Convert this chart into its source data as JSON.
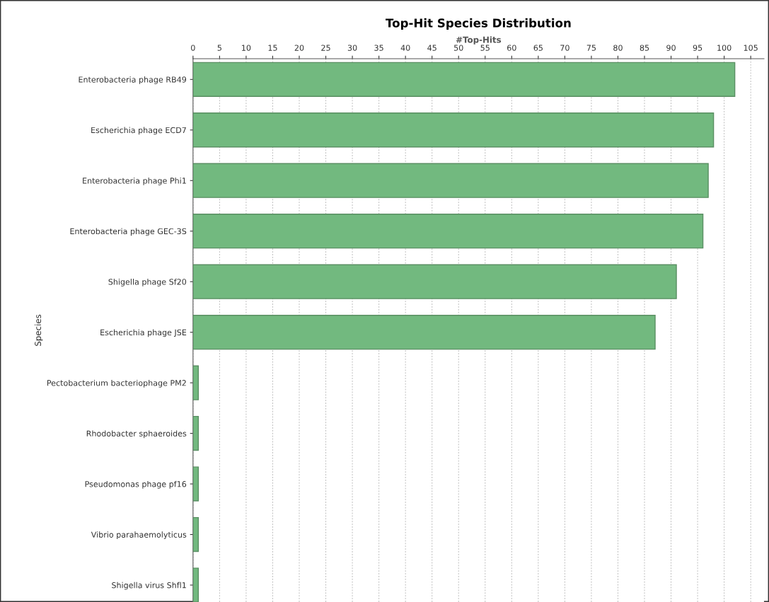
{
  "chart_data": {
    "type": "bar",
    "orientation": "horizontal",
    "title": "Top-Hit Species Distribution",
    "xlabel": "#Top-Hits",
    "ylabel": "Species",
    "categories": [
      "Enterobacteria phage RB49",
      "Escherichia phage ECD7",
      "Enterobacteria phage Phi1",
      "Enterobacteria phage GEC-3S",
      "Shigella phage Sf20",
      "Escherichia phage JSE",
      "Pectobacterium bacteriophage PM2",
      "Rhodobacter sphaeroides",
      "Pseudomonas phage pf16",
      "Vibrio parahaemolyticus",
      "Shigella virus Shfl1"
    ],
    "values": [
      102,
      98,
      97,
      96,
      91,
      87,
      1,
      1,
      1,
      1,
      1
    ],
    "color": "#72b97f",
    "xlim": [
      0,
      107.5
    ],
    "xticks": [
      0,
      5,
      10,
      15,
      20,
      25,
      30,
      35,
      40,
      45,
      50,
      55,
      60,
      65,
      70,
      75,
      80,
      85,
      90,
      95,
      100,
      105
    ],
    "grid": "x"
  }
}
